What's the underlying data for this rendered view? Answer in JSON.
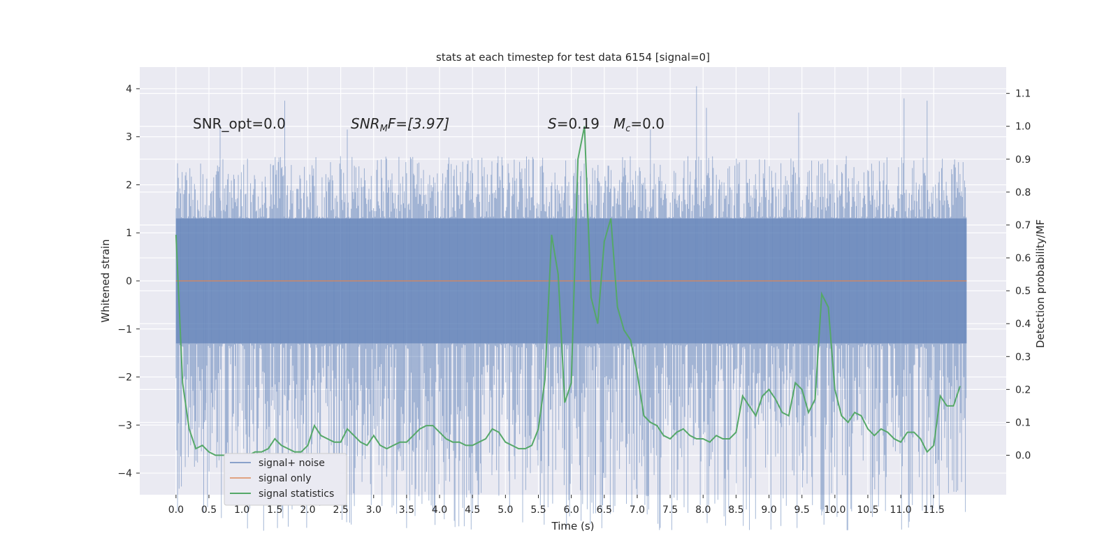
{
  "chart_data": {
    "type": "line",
    "title": "stats at each timestep for test data 6154 [signal=0]",
    "xlabel": "Time (s)",
    "ylabel": "Whitened strain",
    "y2label": "Detection probability/MF",
    "xlim": [
      -0.55,
      12.6
    ],
    "ylim": [
      -4.45,
      4.45
    ],
    "y2lim": [
      -0.12,
      1.18
    ],
    "x_ticks": [
      "0.0",
      "0.5",
      "1.0",
      "1.5",
      "2.0",
      "2.5",
      "3.0",
      "3.5",
      "4.0",
      "4.5",
      "5.0",
      "5.5",
      "6.0",
      "6.5",
      "7.0",
      "7.5",
      "8.0",
      "8.5",
      "9.0",
      "9.5",
      "10.0",
      "10.5",
      "11.0",
      "11.5"
    ],
    "y_ticks": [
      4,
      3,
      2,
      1,
      0,
      -1,
      -2,
      -3,
      -4
    ],
    "y_tick_labels": [
      "4",
      "3",
      "2",
      "1",
      "0",
      "−1",
      "−2",
      "−3",
      "−4"
    ],
    "y2_ticks": [
      1.1,
      1.0,
      0.9,
      0.8,
      0.7,
      0.6,
      0.5,
      0.4,
      0.3,
      0.2,
      0.1,
      0.0
    ],
    "y2_tick_labels": [
      "1.1",
      "1.0",
      "0.9",
      "0.8",
      "0.7",
      "0.6",
      "0.5",
      "0.4",
      "0.3",
      "0.2",
      "0.1",
      "0.0"
    ],
    "grid": true,
    "legend_position": "lower-left",
    "annotations": {
      "snr_opt": "SNR_opt=0.0",
      "snr_mf_main": "SNR",
      "snr_mf_sub": "M",
      "snr_mf_rest": "F=[3.97]",
      "stat_s": "S",
      "stat_s_value": "=0.19",
      "mc_main": "M",
      "mc_sub": "c",
      "mc_value": "=0.0"
    },
    "noise_envelope": {
      "name": "signal+ noise",
      "color": "#4c72b0",
      "x_range": [
        0.0,
        12.0
      ],
      "dense_band": [
        -1.3,
        1.3
      ],
      "spike_band": [
        -2.6,
        2.6
      ],
      "peaks": [
        {
          "x": 1.65,
          "y": 3.75
        },
        {
          "x": 7.9,
          "y": 4.05
        },
        {
          "x": 11.05,
          "y": 3.8
        },
        {
          "x": 11.4,
          "y": 3.75
        },
        {
          "x": 0.67,
          "y": 3.25
        },
        {
          "x": 2.6,
          "y": 3.15
        },
        {
          "x": 9.45,
          "y": 3.5
        },
        {
          "x": 7.2,
          "y": 3.15
        },
        {
          "x": 8.05,
          "y": 3.6
        },
        {
          "x": 2.4,
          "y": -4.0
        },
        {
          "x": 4.55,
          "y": -4.0
        },
        {
          "x": 3.2,
          "y": -3.9
        },
        {
          "x": 11.35,
          "y": -3.6
        },
        {
          "x": 7.1,
          "y": -3.65
        },
        {
          "x": 5.15,
          "y": -3.4
        },
        {
          "x": 9.95,
          "y": -3.0
        },
        {
          "x": 0.45,
          "y": -2.9
        }
      ]
    },
    "signal_only": {
      "name": "signal only",
      "color": "#dd8452",
      "value": 0.0
    },
    "signal_statistics": {
      "name": "signal statistics",
      "color": "#55a868",
      "x": [
        0.0,
        0.1,
        0.2,
        0.3,
        0.4,
        0.5,
        0.6,
        0.7,
        0.8,
        0.9,
        1.0,
        1.1,
        1.2,
        1.3,
        1.4,
        1.5,
        1.6,
        1.7,
        1.8,
        1.9,
        2.0,
        2.1,
        2.2,
        2.3,
        2.4,
        2.5,
        2.6,
        2.7,
        2.8,
        2.9,
        3.0,
        3.1,
        3.2,
        3.3,
        3.4,
        3.5,
        3.6,
        3.7,
        3.8,
        3.9,
        4.0,
        4.1,
        4.2,
        4.3,
        4.4,
        4.5,
        4.6,
        4.7,
        4.8,
        4.9,
        5.0,
        5.1,
        5.2,
        5.3,
        5.4,
        5.5,
        5.6,
        5.7,
        5.8,
        5.9,
        6.0,
        6.1,
        6.2,
        6.3,
        6.4,
        6.5,
        6.6,
        6.7,
        6.8,
        6.9,
        7.0,
        7.1,
        7.2,
        7.3,
        7.4,
        7.5,
        7.6,
        7.7,
        7.8,
        7.9,
        8.0,
        8.1,
        8.2,
        8.3,
        8.4,
        8.5,
        8.6,
        8.7,
        8.8,
        8.9,
        9.0,
        9.1,
        9.2,
        9.3,
        9.4,
        9.5,
        9.6,
        9.7,
        9.8,
        9.9,
        10.0,
        10.1,
        10.2,
        10.3,
        10.4,
        10.5,
        10.6,
        10.7,
        10.8,
        10.9,
        11.0,
        11.1,
        11.2,
        11.3,
        11.4,
        11.5,
        11.6,
        11.7,
        11.8,
        11.9
      ],
      "y": [
        0.67,
        0.22,
        0.08,
        0.02,
        0.03,
        0.01,
        0.0,
        0.0,
        0.0,
        0.0,
        0.0,
        0.0,
        0.01,
        0.01,
        0.02,
        0.05,
        0.03,
        0.02,
        0.01,
        0.01,
        0.03,
        0.09,
        0.06,
        0.05,
        0.04,
        0.04,
        0.08,
        0.06,
        0.04,
        0.03,
        0.06,
        0.03,
        0.02,
        0.03,
        0.04,
        0.04,
        0.06,
        0.08,
        0.09,
        0.09,
        0.07,
        0.05,
        0.04,
        0.04,
        0.03,
        0.03,
        0.04,
        0.05,
        0.08,
        0.07,
        0.04,
        0.03,
        0.02,
        0.02,
        0.03,
        0.08,
        0.23,
        0.67,
        0.55,
        0.16,
        0.22,
        0.9,
        1.0,
        0.48,
        0.4,
        0.65,
        0.72,
        0.45,
        0.38,
        0.35,
        0.25,
        0.12,
        0.1,
        0.09,
        0.06,
        0.05,
        0.07,
        0.08,
        0.06,
        0.05,
        0.05,
        0.04,
        0.06,
        0.05,
        0.05,
        0.07,
        0.18,
        0.15,
        0.12,
        0.18,
        0.2,
        0.17,
        0.13,
        0.12,
        0.22,
        0.2,
        0.13,
        0.17,
        0.49,
        0.45,
        0.2,
        0.12,
        0.1,
        0.13,
        0.12,
        0.08,
        0.06,
        0.08,
        0.07,
        0.05,
        0.04,
        0.07,
        0.07,
        0.05,
        0.01,
        0.03,
        0.18,
        0.15,
        0.15,
        0.21
      ]
    }
  }
}
